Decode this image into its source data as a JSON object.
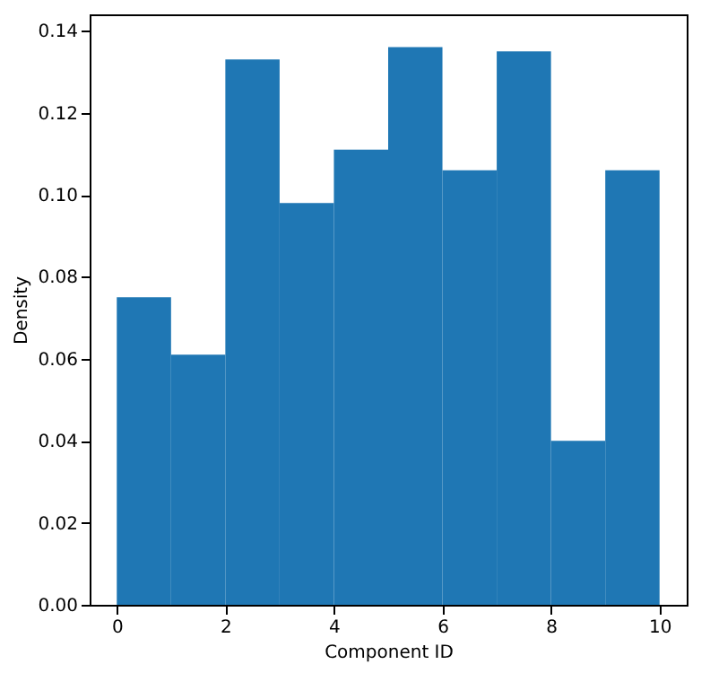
{
  "chart_data": {
    "type": "histogram",
    "xlabel": "Component ID",
    "ylabel": "Density",
    "color": "#1f77b4",
    "bins": [
      0,
      1,
      2,
      3,
      4,
      5,
      6,
      7,
      8,
      9,
      10
    ],
    "values": [
      0.075,
      0.061,
      0.133,
      0.098,
      0.111,
      0.136,
      0.106,
      0.135,
      0.04,
      0.106
    ],
    "xlim": [
      -0.5,
      10.5
    ],
    "xticks": [
      0,
      2,
      4,
      6,
      8,
      10
    ],
    "ylim": [
      0,
      0.144
    ],
    "yticks": [
      {
        "value": 0,
        "label": "0.00"
      },
      {
        "value": 0.02,
        "label": "0.02"
      },
      {
        "value": 0.04,
        "label": "0.04"
      },
      {
        "value": 0.06,
        "label": "0.06"
      },
      {
        "value": 0.08,
        "label": "0.08"
      },
      {
        "value": 0.1,
        "label": "0.10"
      },
      {
        "value": 0.12,
        "label": "0.12"
      },
      {
        "value": 0.14,
        "label": "0.14"
      }
    ],
    "grid": false
  }
}
